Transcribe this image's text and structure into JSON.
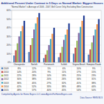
{
  "chart_data": {
    "type": "bar",
    "title": "Additional Percent Under Contract in 5 Days vs Normal Market:  Biggest Houses",
    "subtitle": "\"Normal Market\" is Average of 2006 - 2007, Bell Curve Only, Excluding New Construction",
    "categories": [
      "Chesapeake",
      "Norfolk",
      "Portsmouth",
      "Suffolk",
      "Virginia Beach",
      "Hampton Roads"
    ],
    "series": [
      {
        "name": "2009",
        "color": "#4f81bd",
        "values": [
          8,
          12,
          5,
          6,
          10,
          9
        ],
        "value_labels": [
          "8%",
          "12%",
          "5%",
          "6%",
          "10%",
          "9%"
        ]
      },
      {
        "name": "2010",
        "color": "#c0504d",
        "values": [
          14,
          20,
          9,
          11,
          17,
          15
        ],
        "value_labels": [
          "14%",
          "20%",
          "9%",
          "11%",
          "17%",
          "15%"
        ]
      },
      {
        "name": "2011",
        "color": "#9bbb59",
        "values": [
          22,
          28,
          14,
          18,
          25,
          23
        ],
        "value_labels": [
          "22%",
          "28%",
          "14%",
          "18%",
          "25%",
          "23%"
        ]
      },
      {
        "name": "2012",
        "color": "#8064a2",
        "values": [
          30,
          38,
          20,
          26,
          34,
          31
        ],
        "value_labels": [
          "30%",
          "38%",
          "20%",
          "26%",
          "34%",
          "31%"
        ]
      },
      {
        "name": "2013",
        "color": "#4bacc6",
        "values": [
          36,
          45,
          27,
          32,
          41,
          38
        ],
        "value_labels": [
          "36%",
          "45%",
          "27%",
          "32%",
          "41%",
          "38%"
        ]
      },
      {
        "name": "2014",
        "color": "#f79646",
        "values": [
          42,
          52,
          33,
          38,
          48,
          44
        ],
        "value_labels": [
          "42%",
          "52%",
          "33%",
          "38%",
          "48%",
          "44%"
        ]
      },
      {
        "name": "2015",
        "color": "#1f3a93",
        "values": [
          48,
          57,
          40,
          45,
          54,
          50
        ],
        "value_labels": [
          "48%",
          "57%",
          "40%",
          "45%",
          "54%",
          "50%"
        ]
      }
    ],
    "ylim": [
      0,
      60
    ],
    "yticks": [
      {
        "value": 0,
        "label": "0%"
      },
      {
        "value": 10,
        "label": "10%"
      },
      {
        "value": 20,
        "label": "20%"
      },
      {
        "value": 30,
        "label": "30%"
      },
      {
        "value": 40,
        "label": "40%"
      },
      {
        "value": 50,
        "label": "50%"
      },
      {
        "value": 60,
        "label": "60%"
      }
    ],
    "grid": true,
    "legend": "bottom",
    "footer": "Compiled by Agents for Home Buyers LLC    www.AgentsForHomeBuyers.com",
    "source": "Data Source: REIN MLS"
  }
}
